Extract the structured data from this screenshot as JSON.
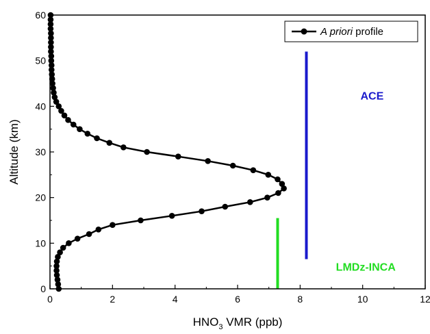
{
  "chart_data": {
    "type": "line",
    "xlabel": {
      "pre": "HNO",
      "sub": "3",
      "post": " VMR (ppb)"
    },
    "ylabel": "Altitude (km)",
    "xlim": [
      0,
      12
    ],
    "ylim": [
      0,
      60
    ],
    "xticks": [
      0,
      2,
      4,
      6,
      8,
      10,
      12
    ],
    "yticks": [
      0,
      10,
      20,
      30,
      40,
      50,
      60
    ],
    "grid": false,
    "legend_position": "top-right",
    "series": [
      {
        "name_italic": "A priori",
        "name_rest": " profile",
        "color": "#000000",
        "x": [
          0.28,
          0.26,
          0.24,
          0.22,
          0.21,
          0.21,
          0.22,
          0.25,
          0.32,
          0.42,
          0.6,
          0.88,
          1.25,
          1.55,
          2.0,
          2.9,
          3.9,
          4.85,
          5.6,
          6.4,
          6.95,
          7.3,
          7.48,
          7.42,
          7.28,
          6.98,
          6.5,
          5.85,
          5.05,
          4.1,
          3.1,
          2.35,
          1.9,
          1.5,
          1.2,
          0.95,
          0.75,
          0.58,
          0.46,
          0.36,
          0.28,
          0.2,
          0.15,
          0.12,
          0.1,
          0.08,
          0.07,
          0.06,
          0.05,
          0.05,
          0.04,
          0.04,
          0.03,
          0.03,
          0.03,
          0.03,
          0.03,
          0.02,
          0.02,
          0.02,
          0.02
        ],
        "y": [
          0,
          1,
          2,
          3,
          4,
          5,
          6,
          7,
          8,
          9,
          10,
          11,
          12,
          13,
          14,
          15,
          16,
          17,
          18,
          19,
          20,
          21,
          22,
          23,
          24,
          25,
          26,
          27,
          28,
          29,
          30,
          31,
          32,
          33,
          34,
          35,
          36,
          37,
          38,
          39,
          40,
          41,
          42,
          43,
          44,
          45,
          46,
          47,
          48,
          49,
          50,
          51,
          52,
          53,
          54,
          55,
          56,
          57,
          58,
          59,
          60
        ]
      }
    ],
    "ranges": [
      {
        "label": "ACE",
        "x": 8.2,
        "y_from": 6.5,
        "y_to": 52,
        "color": "#1a1acc"
      },
      {
        "label": "LMDz-INCA",
        "x": 7.28,
        "y_from": 0,
        "y_to": 15.5,
        "color": "#22dd22"
      }
    ],
    "annotations": [
      {
        "text": "ACE",
        "x": 10.3,
        "y": 41.5,
        "color": "#1a1acc"
      },
      {
        "text": "LMDz-INCA",
        "x": 10.1,
        "y": 4,
        "color": "#22dd22"
      }
    ]
  }
}
